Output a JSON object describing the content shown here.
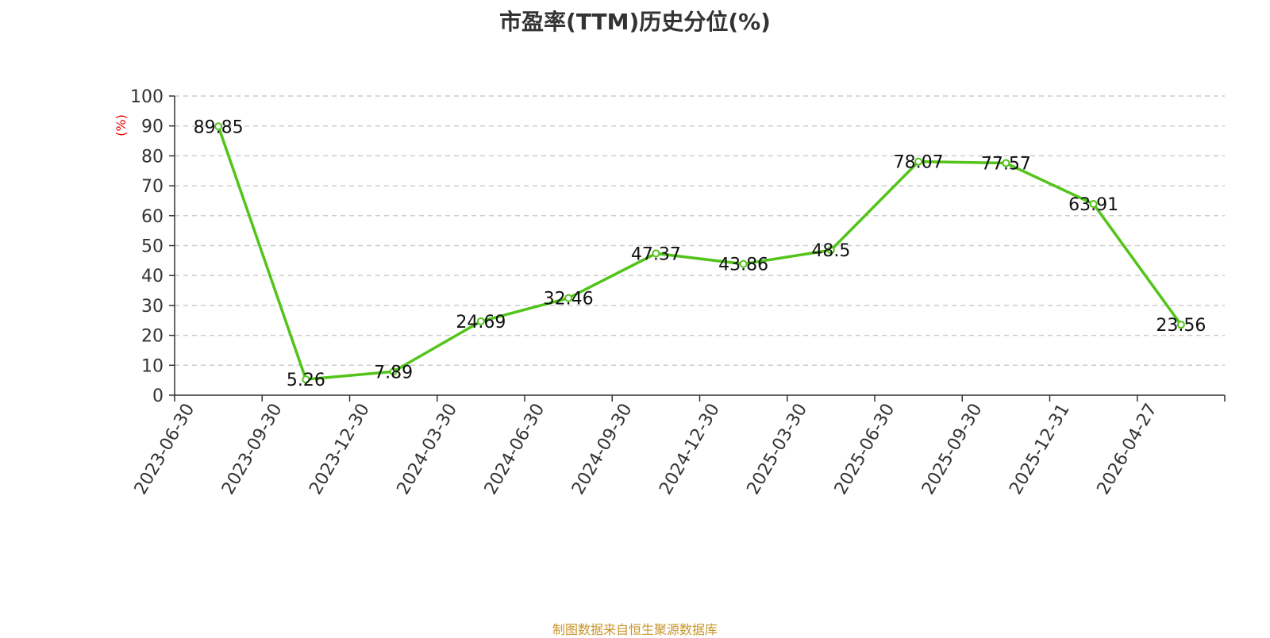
{
  "chart_data": {
    "type": "line",
    "title": "市盈率(TTM)历史分位(%)",
    "ylabel": "(%)",
    "xlabel": "",
    "categories": [
      "2023-06-30",
      "2023-09-30",
      "2023-12-30",
      "2024-03-30",
      "2024-06-30",
      "2024-09-30",
      "2024-12-30",
      "2025-03-30",
      "2025-06-30",
      "2025-09-30",
      "2025-12-31",
      "2026-04-27"
    ],
    "series": [
      {
        "values": [
          89.85,
          5.26,
          7.89,
          24.69,
          32.46,
          47.37,
          43.86,
          48.5,
          78.07,
          77.57,
          63.91,
          23.56
        ],
        "labels": [
          "89.85",
          "5.26",
          "7.89",
          "24.69",
          "32.46",
          "47.37",
          "43.86",
          "48.5",
          "78.07",
          "77.57",
          "63.91",
          "23.56"
        ]
      }
    ],
    "ylim": [
      0,
      100
    ],
    "yticks": [
      "0",
      "10",
      "20",
      "30",
      "40",
      "50",
      "60",
      "70",
      "80",
      "90",
      "100"
    ],
    "grid": true,
    "legend": "none",
    "colors": {
      "line": "#52c41a",
      "ylabel": "#e60000",
      "grid": "#cccccc",
      "axis": "#333333"
    }
  },
  "footer": {
    "credit": "制图数据来自恒生聚源数据库"
  }
}
